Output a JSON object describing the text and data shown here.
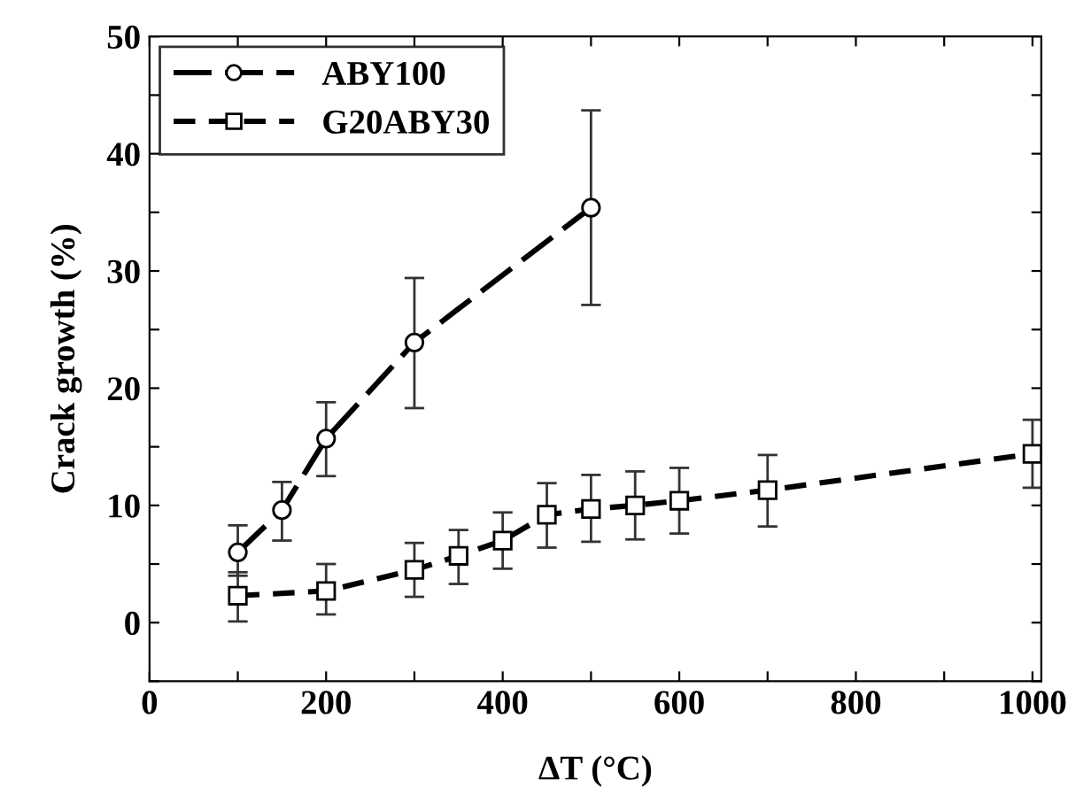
{
  "chart_data": {
    "type": "line",
    "xlabel": "ΔT (°C)",
    "ylabel": "Crack growth (%)",
    "xlim": [
      0,
      1010
    ],
    "ylim": [
      -5,
      50
    ],
    "xticks": [
      0,
      {
        "value": 100,
        "label": null
      },
      200,
      {
        "value": 300,
        "label": null
      },
      400,
      {
        "value": 500,
        "label": null
      },
      600,
      {
        "value": 700,
        "label": null
      },
      800,
      {
        "value": 900,
        "label": null
      },
      1000
    ],
    "yticks": [
      {
        "value": -5,
        "label": null
      },
      0,
      {
        "value": 5,
        "label": null
      },
      10,
      {
        "value": 15,
        "label": null
      },
      20,
      {
        "value": 25,
        "label": null
      },
      30,
      {
        "value": 35,
        "label": null
      },
      40,
      {
        "value": 45,
        "label": null
      },
      50
    ],
    "grid": false,
    "legend": "top left",
    "series": [
      {
        "name": "ABY100",
        "color": "#000000",
        "marker": "circle",
        "line_style": "dashed",
        "x": [
          100,
          150,
          200,
          300,
          500
        ],
        "values": [
          6.0,
          9.6,
          15.7,
          23.9,
          35.4
        ],
        "errors": [
          [
            4.0,
            8.3
          ],
          [
            7.0,
            12.0
          ],
          [
            12.5,
            18.8
          ],
          [
            18.3,
            29.4
          ],
          [
            27.1,
            43.7
          ]
        ]
      },
      {
        "name": "G20ABY30",
        "color": "#000000",
        "marker": "square",
        "line_style": "dashed",
        "x": [
          100,
          200,
          300,
          350,
          400,
          450,
          500,
          550,
          600,
          700,
          1000
        ],
        "values": [
          2.3,
          2.7,
          4.5,
          5.7,
          7.0,
          9.2,
          9.7,
          10.0,
          10.4,
          11.3,
          14.4
        ],
        "errors": [
          [
            0.1,
            4.3
          ],
          [
            0.7,
            5.0
          ],
          [
            2.2,
            6.8
          ],
          [
            3.3,
            7.9
          ],
          [
            4.6,
            9.4
          ],
          [
            6.4,
            11.9
          ],
          [
            6.9,
            12.6
          ],
          [
            7.1,
            12.9
          ],
          [
            7.6,
            13.2
          ],
          [
            8.2,
            14.3
          ],
          [
            11.5,
            17.3
          ]
        ]
      }
    ]
  }
}
